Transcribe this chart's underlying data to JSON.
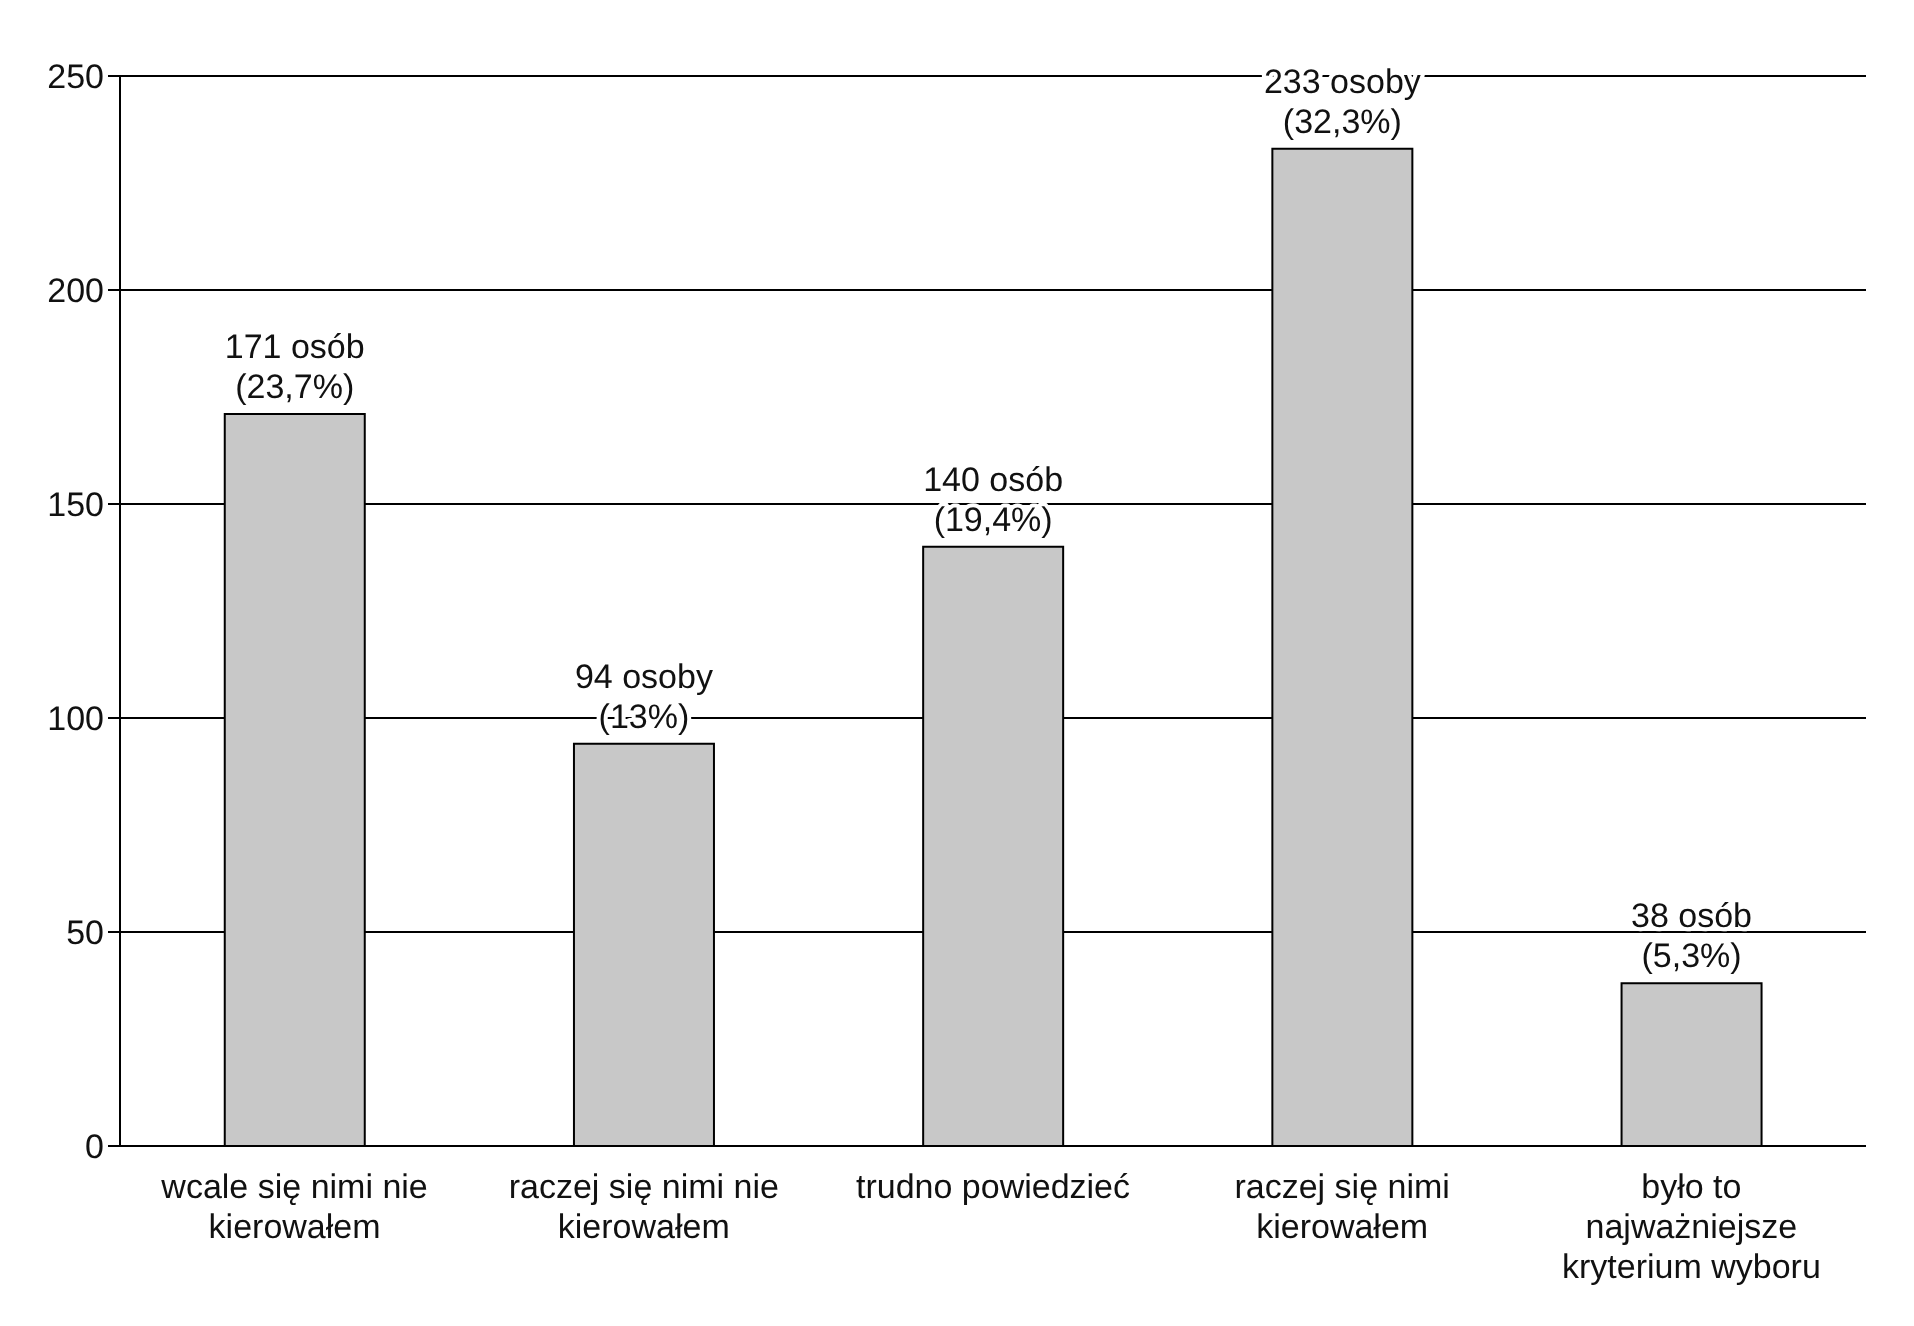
{
  "chart_data": {
    "type": "bar",
    "categories": [
      "wcale się nimi nie kierowałem",
      "raczej się nimi nie kierowałem",
      "trudno powiedzieć",
      "raczej się nimi kierowałem",
      "było to najważniejsze kryterium wyboru"
    ],
    "values": [
      171,
      94,
      140,
      233,
      38
    ],
    "color": "#c8c8c8",
    "value_labels": [
      "171 osób\n(23,7%)",
      "94 osoby\n(13%)",
      "140 osób\n(19,4%)",
      "233 osoby\n(32,3%)",
      "38 osób\n(5,3%)"
    ],
    "ylim": [
      0,
      250
    ],
    "yticks": [
      0,
      50,
      100,
      150,
      200,
      250
    ],
    "grid": "y"
  }
}
